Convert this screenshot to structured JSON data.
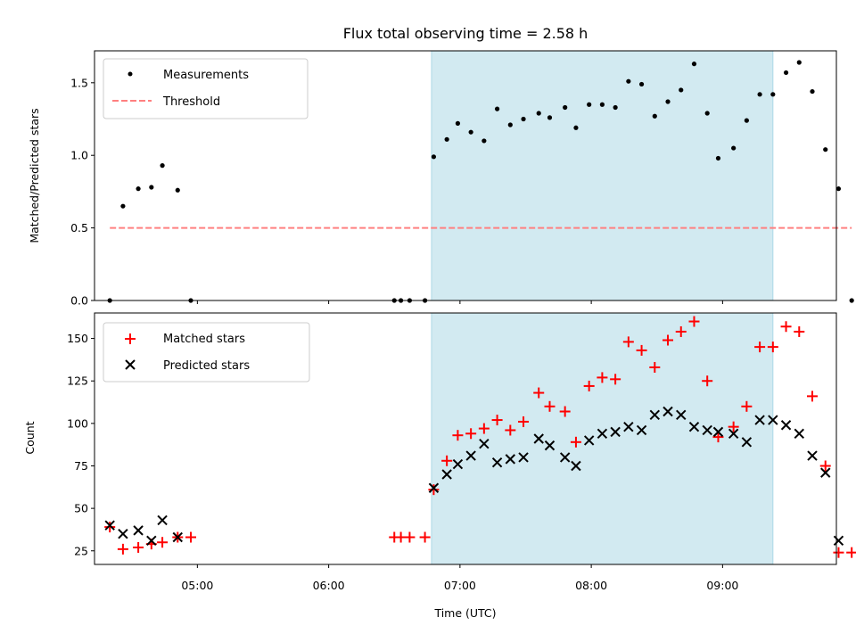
{
  "title": "Flux total observing time = 2.58 h",
  "colors": {
    "span_fill": "#add8e6",
    "measurements": "#000000",
    "threshold": "#ff8080",
    "matched": "#ff0000",
    "predicted": "#000000"
  },
  "chart_data": [
    {
      "type": "scatter",
      "panel": "top",
      "ylabel": "Matched/Predicted stars",
      "xlim": [
        "04:13",
        "09:52"
      ],
      "ylim": [
        0,
        1.72
      ],
      "yticks": [
        0.0,
        0.5,
        1.0,
        1.5
      ],
      "ytick_labels": [
        "0.0",
        "0.5",
        "1.0",
        "1.5"
      ],
      "legend_position": "top-left",
      "shaded_span": {
        "start": "06:47",
        "end": "09:23"
      },
      "series": [
        {
          "name": "Measurements",
          "marker": "dot",
          "x": [
            "04:20",
            "04:26",
            "04:33",
            "04:39",
            "04:44",
            "04:51",
            "04:57",
            "06:30",
            "06:33",
            "06:37",
            "06:44",
            "06:48",
            "06:54",
            "06:59",
            "07:05",
            "07:11",
            "07:17",
            "07:23",
            "07:29",
            "07:36",
            "07:41",
            "07:48",
            "07:53",
            "07:59",
            "08:05",
            "08:11",
            "08:17",
            "08:23",
            "08:29",
            "08:35",
            "08:41",
            "08:47",
            "08:53",
            "08:58",
            "09:05",
            "09:11",
            "09:17",
            "09:23",
            "09:29",
            "09:35",
            "09:41",
            "09:47",
            "09:53",
            "09:59"
          ],
          "y": [
            0.0,
            0.65,
            0.77,
            0.78,
            0.93,
            0.76,
            0.0,
            0.0,
            0.0,
            0.0,
            0.0,
            0.99,
            1.11,
            1.22,
            1.16,
            1.1,
            1.32,
            1.21,
            1.25,
            1.29,
            1.26,
            1.33,
            1.19,
            1.35,
            1.35,
            1.33,
            1.51,
            1.49,
            1.27,
            1.37,
            1.45,
            1.63,
            1.29,
            0.98,
            1.05,
            1.24,
            1.42,
            1.42,
            1.57,
            1.64,
            1.44,
            1.04,
            0.77,
            0.0
          ]
        },
        {
          "name": "Threshold",
          "style": "dashed",
          "x": [
            "04:20",
            "09:59"
          ],
          "y": [
            0.5,
            0.5
          ]
        }
      ]
    },
    {
      "type": "scatter",
      "panel": "bottom",
      "xlabel": "Time (UTC)",
      "ylabel": "Count",
      "xlim": [
        "04:13",
        "09:52"
      ],
      "ylim": [
        17,
        165
      ],
      "xticks": [
        "05:00",
        "06:00",
        "07:00",
        "08:00",
        "09:00"
      ],
      "yticks": [
        25,
        50,
        75,
        100,
        125,
        150
      ],
      "legend_position": "top-left",
      "shaded_span": {
        "start": "06:47",
        "end": "09:23"
      },
      "series": [
        {
          "name": "Matched stars",
          "marker": "plus",
          "x": [
            "04:20",
            "04:26",
            "04:33",
            "04:39",
            "04:44",
            "04:51",
            "04:57",
            "06:30",
            "06:33",
            "06:37",
            "06:44",
            "06:48",
            "06:54",
            "06:59",
            "07:05",
            "07:11",
            "07:17",
            "07:23",
            "07:29",
            "07:36",
            "07:41",
            "07:48",
            "07:53",
            "07:59",
            "08:05",
            "08:11",
            "08:17",
            "08:23",
            "08:29",
            "08:35",
            "08:41",
            "08:47",
            "08:53",
            "08:58",
            "09:05",
            "09:11",
            "09:17",
            "09:23",
            "09:29",
            "09:35",
            "09:41",
            "09:47",
            "09:53",
            "09:59"
          ],
          "y": [
            39,
            26,
            27,
            29,
            30,
            33,
            33,
            33,
            33,
            33,
            33,
            61,
            78,
            93,
            94,
            97,
            102,
            96,
            101,
            118,
            110,
            107,
            89,
            122,
            127,
            126,
            148,
            143,
            133,
            149,
            154,
            160,
            125,
            92,
            98,
            110,
            145,
            145,
            157,
            154,
            116,
            75,
            24,
            24
          ]
        },
        {
          "name": "Predicted stars",
          "marker": "x",
          "x": [
            "04:20",
            "04:26",
            "04:33",
            "04:39",
            "04:44",
            "04:51",
            "06:48",
            "06:54",
            "06:59",
            "07:05",
            "07:11",
            "07:17",
            "07:23",
            "07:29",
            "07:36",
            "07:41",
            "07:48",
            "07:53",
            "07:59",
            "08:05",
            "08:11",
            "08:17",
            "08:23",
            "08:29",
            "08:35",
            "08:41",
            "08:47",
            "08:53",
            "08:58",
            "09:05",
            "09:11",
            "09:17",
            "09:23",
            "09:29",
            "09:35",
            "09:41",
            "09:47",
            "09:53"
          ],
          "y": [
            40,
            35,
            37,
            31,
            43,
            33,
            62,
            70,
            76,
            81,
            88,
            77,
            79,
            80,
            91,
            87,
            80,
            75,
            90,
            94,
            95,
            98,
            96,
            105,
            107,
            105,
            98,
            96,
            95,
            94,
            89,
            102,
            102,
            99,
            94,
            81,
            71,
            31
          ]
        }
      ]
    }
  ]
}
